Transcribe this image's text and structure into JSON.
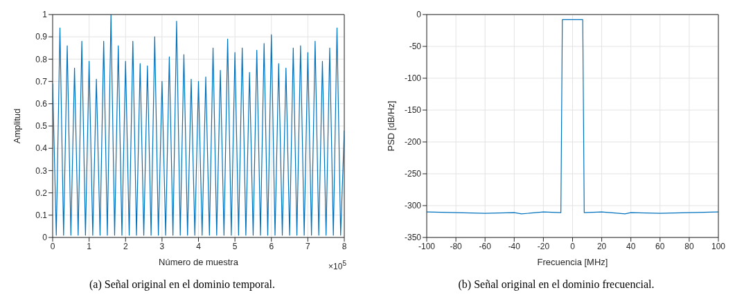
{
  "chart_data": [
    {
      "type": "line",
      "xlabel": "Número de muestra",
      "ylabel": "Amplitud",
      "x": [
        0,
        0.1,
        0.2,
        0.3,
        0.4,
        0.5,
        0.6,
        0.7,
        0.8,
        0.9,
        1,
        1.1,
        1.2,
        1.3,
        1.4,
        1.5,
        1.6,
        1.7,
        1.8,
        1.9,
        2,
        2.1,
        2.2,
        2.3,
        2.4,
        2.5,
        2.6,
        2.7,
        2.8,
        2.9,
        3,
        3.1,
        3.2,
        3.3,
        3.4,
        3.5,
        3.6,
        3.7,
        3.8,
        3.9,
        4,
        4.1,
        4.2,
        4.3,
        4.4,
        4.5,
        4.6,
        4.7,
        4.8,
        4.9,
        5,
        5.1,
        5.2,
        5.3,
        5.4,
        5.5,
        5.6,
        5.7,
        5.8,
        5.9,
        6,
        6.1,
        6.2,
        6.3,
        6.4,
        6.5,
        6.6,
        6.7,
        6.8,
        6.9,
        7,
        7.1,
        7.2,
        7.3,
        7.4,
        7.5,
        7.6,
        7.7,
        7.8,
        7.9,
        8
      ],
      "series": [
        {
          "color": "#0072bd",
          "values": [
            0.69,
            0.01,
            0.94,
            0.01,
            0.86,
            0.01,
            0.76,
            0.01,
            0.88,
            0.01,
            0.79,
            0.01,
            0.71,
            0.01,
            0.88,
            0.01,
            1.0,
            0.01,
            0.86,
            0.01,
            0.79,
            0.01,
            0.88,
            0.01,
            0.78,
            0.01,
            0.77,
            0.01,
            0.9,
            0.01,
            0.7,
            0.01,
            0.81,
            0.01,
            0.97,
            0.01,
            0.82,
            0.01,
            0.71,
            0.01,
            0.7,
            0.01,
            0.72,
            0.01,
            0.85,
            0.01,
            0.75,
            0.01,
            0.89,
            0.01,
            0.83,
            0.01,
            0.85,
            0.01,
            0.74,
            0.01,
            0.84,
            0.01,
            0.87,
            0.01,
            0.91,
            0.01,
            0.78,
            0.01,
            0.76,
            0.01,
            0.85,
            0.01,
            0.86,
            0.01,
            0.83,
            0.01,
            0.88,
            0.01,
            0.79,
            0.01,
            0.85,
            0.01,
            0.94,
            0.01,
            0.48
          ]
        }
      ],
      "xlim": [
        0,
        8
      ],
      "xticks": [
        0,
        1,
        2,
        3,
        4,
        5,
        6,
        7,
        8
      ],
      "ylim": [
        0,
        1
      ],
      "yticks": [
        0,
        0.1,
        0.2,
        0.3,
        0.4,
        0.5,
        0.6,
        0.7,
        0.8,
        0.9,
        1
      ],
      "grid": true,
      "marker": "none",
      "line_style": "solid",
      "annotations": [
        "×10$^{5}$",
        "(a) Señal original en el dominio temporal."
      ]
    },
    {
      "type": "line",
      "xlabel": "Frecuencia [MHz]",
      "ylabel": "PSD [dB/Hz]",
      "x": [
        -100,
        -80,
        -60,
        -40,
        -35,
        -20,
        -8,
        -7,
        7,
        8,
        20,
        36,
        40,
        60,
        80,
        100
      ],
      "series": [
        {
          "color": "#0072bd",
          "values": [
            -310,
            -311,
            -312,
            -311,
            -313,
            -310,
            -311,
            -8,
            -8,
            -311,
            -310,
            -313,
            -311,
            -312,
            -311,
            -310
          ]
        }
      ],
      "xlim": [
        -100,
        100
      ],
      "xticks": [
        -100,
        -80,
        -60,
        -40,
        -20,
        0,
        20,
        40,
        60,
        80,
        100
      ],
      "ylim": [
        -350,
        0
      ],
      "yticks": [
        -350,
        -300,
        -250,
        -200,
        -150,
        -100,
        -50,
        0
      ],
      "grid": true,
      "marker": "none",
      "line_style": "solid",
      "annotations": [
        "(b) Señal original en el dominio frecuencial."
      ]
    }
  ]
}
